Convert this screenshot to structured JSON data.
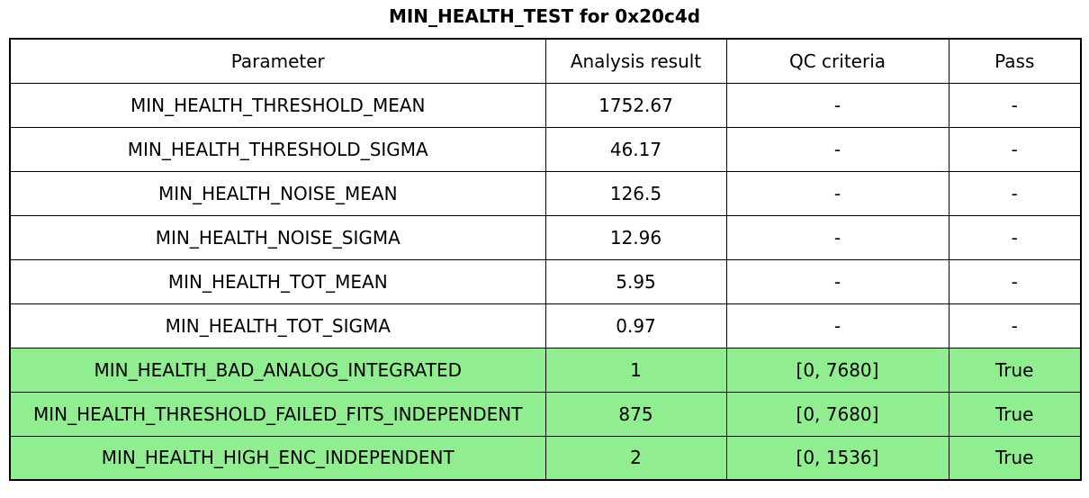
{
  "title": "MIN_HEALTH_TEST for 0x20c4d",
  "colors": {
    "highlight_green": "#90ee90",
    "border": "#000000",
    "background": "#ffffff",
    "text": "#000000"
  },
  "chart_data": {
    "type": "table",
    "title": "MIN_HEALTH_TEST for 0x20c4d",
    "columns": [
      "Parameter",
      "Analysis result",
      "QC criteria",
      "Pass"
    ],
    "rows": [
      [
        "MIN_HEALTH_THRESHOLD_MEAN",
        "1752.67",
        "-",
        "-"
      ],
      [
        "MIN_HEALTH_THRESHOLD_SIGMA",
        "46.17",
        "-",
        "-"
      ],
      [
        "MIN_HEALTH_NOISE_MEAN",
        "126.5",
        "-",
        "-"
      ],
      [
        "MIN_HEALTH_NOISE_SIGMA",
        "12.96",
        "-",
        "-"
      ],
      [
        "MIN_HEALTH_TOT_MEAN",
        "5.95",
        "-",
        "-"
      ],
      [
        "MIN_HEALTH_TOT_SIGMA",
        "0.97",
        "-",
        "-"
      ],
      [
        "MIN_HEALTH_BAD_ANALOG_INTEGRATED",
        "1",
        "[0, 7680]",
        "True"
      ],
      [
        "MIN_HEALTH_THRESHOLD_FAILED_FITS_INDEPENDENT",
        "875",
        "[0, 7680]",
        "True"
      ],
      [
        "MIN_HEALTH_HIGH_ENC_INDEPENDENT",
        "2",
        "[0, 1536]",
        "True"
      ]
    ],
    "highlighted_rows": [
      6,
      7,
      8
    ],
    "highlight_meaning": "row passed QC criteria (Pass = True)",
    "grid": true,
    "legend": false
  }
}
